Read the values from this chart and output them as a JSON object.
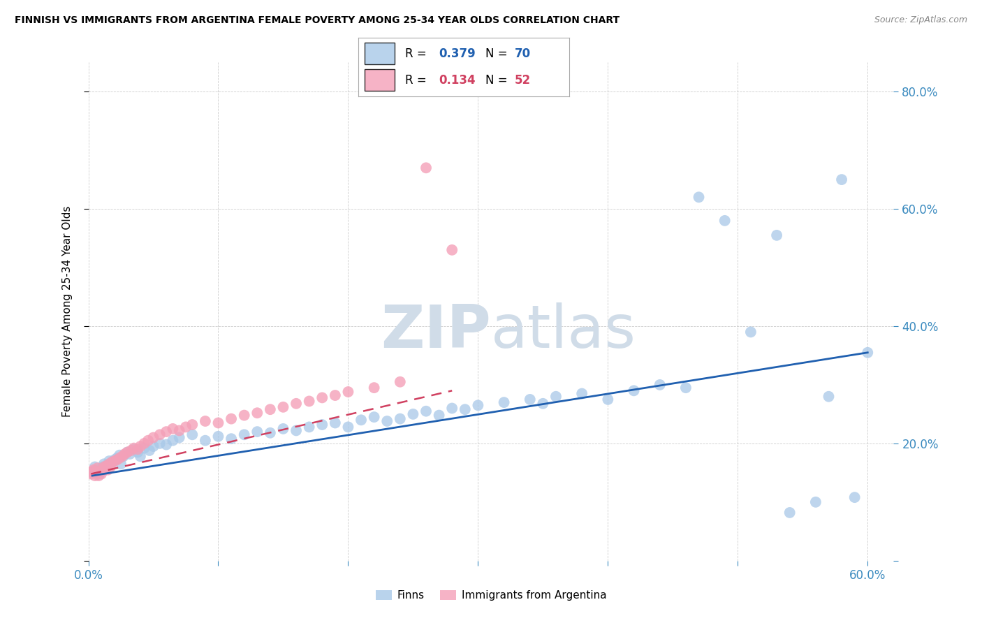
{
  "title": "FINNISH VS IMMIGRANTS FROM ARGENTINA FEMALE POVERTY AMONG 25-34 YEAR OLDS CORRELATION CHART",
  "source": "Source: ZipAtlas.com",
  "ylabel": "Female Poverty Among 25-34 Year Olds",
  "xlim": [
    0.0,
    0.62
  ],
  "ylim": [
    0.0,
    0.85
  ],
  "yticks": [
    0.0,
    0.2,
    0.4,
    0.6,
    0.8
  ],
  "xticks": [
    0.0,
    0.1,
    0.2,
    0.3,
    0.4,
    0.5,
    0.6
  ],
  "finns_R": 0.379,
  "finns_N": 70,
  "argentina_R": 0.134,
  "argentina_N": 52,
  "finns_color": "#a8c8e8",
  "argentina_color": "#f4a0b8",
  "finns_line_color": "#2060b0",
  "argentina_line_color": "#d04060",
  "background_color": "#ffffff",
  "watermark_color": "#d0dce8",
  "finns_x": [
    0.003,
    0.005,
    0.007,
    0.008,
    0.01,
    0.011,
    0.012,
    0.014,
    0.015,
    0.016,
    0.018,
    0.02,
    0.022,
    0.024,
    0.025,
    0.027,
    0.03,
    0.032,
    0.035,
    0.038,
    0.04,
    0.043,
    0.047,
    0.05,
    0.055,
    0.06,
    0.065,
    0.07,
    0.08,
    0.09,
    0.1,
    0.11,
    0.12,
    0.13,
    0.14,
    0.15,
    0.16,
    0.17,
    0.18,
    0.19,
    0.2,
    0.21,
    0.22,
    0.23,
    0.24,
    0.25,
    0.26,
    0.27,
    0.28,
    0.29,
    0.3,
    0.32,
    0.34,
    0.35,
    0.36,
    0.38,
    0.4,
    0.42,
    0.44,
    0.46,
    0.47,
    0.49,
    0.51,
    0.53,
    0.54,
    0.56,
    0.57,
    0.58,
    0.59,
    0.6
  ],
  "finns_y": [
    0.15,
    0.16,
    0.155,
    0.148,
    0.152,
    0.16,
    0.165,
    0.158,
    0.162,
    0.17,
    0.168,
    0.172,
    0.175,
    0.18,
    0.165,
    0.178,
    0.185,
    0.182,
    0.19,
    0.185,
    0.178,
    0.192,
    0.188,
    0.195,
    0.2,
    0.198,
    0.205,
    0.21,
    0.215,
    0.205,
    0.212,
    0.208,
    0.215,
    0.22,
    0.218,
    0.225,
    0.222,
    0.228,
    0.232,
    0.235,
    0.228,
    0.24,
    0.245,
    0.238,
    0.242,
    0.25,
    0.255,
    0.248,
    0.26,
    0.258,
    0.265,
    0.27,
    0.275,
    0.268,
    0.28,
    0.285,
    0.275,
    0.29,
    0.3,
    0.295,
    0.62,
    0.58,
    0.39,
    0.555,
    0.082,
    0.1,
    0.28,
    0.65,
    0.108,
    0.355
  ],
  "argentina_x": [
    0.002,
    0.003,
    0.004,
    0.005,
    0.006,
    0.007,
    0.008,
    0.009,
    0.01,
    0.011,
    0.012,
    0.013,
    0.014,
    0.015,
    0.016,
    0.017,
    0.018,
    0.02,
    0.022,
    0.024,
    0.026,
    0.028,
    0.03,
    0.033,
    0.035,
    0.038,
    0.04,
    0.043,
    0.046,
    0.05,
    0.055,
    0.06,
    0.065,
    0.07,
    0.075,
    0.08,
    0.09,
    0.1,
    0.11,
    0.12,
    0.13,
    0.14,
    0.15,
    0.16,
    0.17,
    0.18,
    0.19,
    0.2,
    0.22,
    0.24,
    0.26,
    0.28
  ],
  "argentina_y": [
    0.148,
    0.152,
    0.155,
    0.145,
    0.15,
    0.158,
    0.145,
    0.152,
    0.148,
    0.155,
    0.16,
    0.158,
    0.162,
    0.155,
    0.165,
    0.16,
    0.168,
    0.17,
    0.172,
    0.175,
    0.178,
    0.182,
    0.185,
    0.188,
    0.192,
    0.19,
    0.195,
    0.2,
    0.205,
    0.21,
    0.215,
    0.22,
    0.225,
    0.222,
    0.228,
    0.232,
    0.238,
    0.235,
    0.242,
    0.248,
    0.252,
    0.258,
    0.262,
    0.268,
    0.272,
    0.278,
    0.282,
    0.288,
    0.295,
    0.305,
    0.67,
    0.53
  ],
  "finns_trendline_x": [
    0.003,
    0.6
  ],
  "finns_trendline_y": [
    0.145,
    0.355
  ],
  "argentina_trendline_x": [
    0.002,
    0.28
  ],
  "argentina_trendline_y": [
    0.148,
    0.29
  ]
}
